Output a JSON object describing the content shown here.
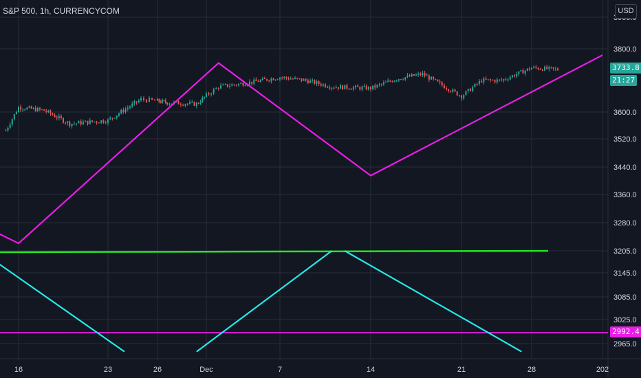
{
  "header": {
    "title": "S&P 500, 1h, CURRENCYCOM",
    "currency_button": "USD"
  },
  "price_axis": {
    "last_price_label": "3733.8",
    "countdown_label": "21:27",
    "level_label": "2992.4"
  },
  "chart_data": {
    "type": "candlestick",
    "title": "S&P 500, 1h, CURRENCYCOM",
    "x_tick_labels": [
      "16",
      "23",
      "26",
      "Dec",
      "7",
      "14",
      "21",
      "28",
      "202"
    ],
    "y_tick_labels": [
      "3900.0",
      "3800.0",
      "3600.0",
      "3520.0",
      "3440.0",
      "3360.0",
      "3280.0",
      "3205.0",
      "3145.0",
      "3085.0",
      "3025.0",
      "2965.0"
    ],
    "grid": true,
    "price_series": {
      "name": "S&P 500",
      "approx_path": [
        {
          "date": "Nov 15",
          "close": 3545
        },
        {
          "date": "Nov 16",
          "close": 3615
        },
        {
          "date": "Nov 18",
          "close": 3605
        },
        {
          "date": "Nov 20",
          "close": 3565
        },
        {
          "date": "Nov 23",
          "close": 3575
        },
        {
          "date": "Nov 25",
          "close": 3640
        },
        {
          "date": "Nov 27",
          "close": 3630
        },
        {
          "date": "Nov 30",
          "close": 3625
        },
        {
          "date": "Dec 2",
          "close": 3680
        },
        {
          "date": "Dec 4",
          "close": 3690
        },
        {
          "date": "Dec 7",
          "close": 3710
        },
        {
          "date": "Dec 9",
          "close": 3700
        },
        {
          "date": "Dec 11",
          "close": 3680
        },
        {
          "date": "Dec 14",
          "close": 3675
        },
        {
          "date": "Dec 16",
          "close": 3705
        },
        {
          "date": "Dec 18",
          "close": 3720
        },
        {
          "date": "Dec 21",
          "close": 3650
        },
        {
          "date": "Dec 23",
          "close": 3700
        },
        {
          "date": "Dec 25",
          "close": 3700
        },
        {
          "date": "Dec 28",
          "close": 3740
        },
        {
          "date": "Dec 30",
          "close": 3733.8
        }
      ]
    },
    "drawings": [
      {
        "kind": "polyline",
        "color": "#e91ee6",
        "points": [
          {
            "date": "Nov 13",
            "price": 3275
          },
          {
            "date": "Nov 16",
            "price": 3225
          },
          {
            "date": "Dec 2",
            "price": 3755
          },
          {
            "date": "Dec 14",
            "price": 3415
          },
          {
            "date": "Jan 2",
            "price": 3780
          }
        ]
      },
      {
        "kind": "horizontal-segment",
        "color": "#22e622",
        "price": 3205,
        "from": "Nov 13",
        "to": "Dec 30"
      },
      {
        "kind": "horizontal-line",
        "color": "#e91ee6",
        "price": 2992.4
      },
      {
        "kind": "segment",
        "color": "#26e8e8",
        "points": [
          {
            "date": "Nov 13",
            "price": 3205
          },
          {
            "date": "Nov 24",
            "price": 2945
          }
        ]
      },
      {
        "kind": "segment",
        "color": "#26e8e8",
        "points": [
          {
            "date": "Nov 30",
            "price": 2945
          },
          {
            "date": "Dec 11",
            "price": 3205
          }
        ]
      },
      {
        "kind": "segment",
        "color": "#26e8e8",
        "points": [
          {
            "date": "Dec 12",
            "price": 3205
          },
          {
            "date": "Dec 27",
            "price": 2945
          }
        ]
      }
    ]
  },
  "colors": {
    "background": "#131722",
    "grid": "#2a2e39",
    "axis_text": "#d1d4dc",
    "candle_up": "#26a69a",
    "candle_down": "#ef5350"
  }
}
